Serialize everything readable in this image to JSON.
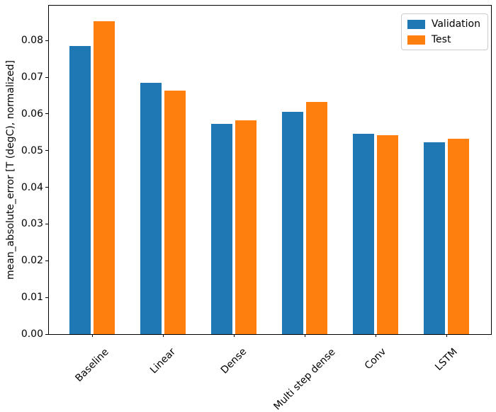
{
  "chart_data": {
    "type": "bar",
    "title": "",
    "xlabel": "",
    "ylabel": "mean_absolute_error [T (degC), normalized]",
    "categories": [
      "Baseline",
      "Linear",
      "Dense",
      "Multi step dense",
      "Conv",
      "LSTM"
    ],
    "series": [
      {
        "name": "Validation",
        "color": "#1f77b4",
        "values": [
          0.0785,
          0.0685,
          0.0572,
          0.0605,
          0.0545,
          0.0523
        ]
      },
      {
        "name": "Test",
        "color": "#ff7f0e",
        "values": [
          0.0852,
          0.0663,
          0.0583,
          0.0632,
          0.0543,
          0.0533
        ]
      }
    ],
    "ylim": [
      0,
      0.0895
    ],
    "yticks": [
      0,
      0.01,
      0.02,
      0.03,
      0.04,
      0.05,
      0.06,
      0.07,
      0.08
    ],
    "ytick_labels": [
      "0.00",
      "0.01",
      "0.02",
      "0.03",
      "0.04",
      "0.05",
      "0.06",
      "0.07",
      "0.08"
    ],
    "xtick_rotation_deg": 45,
    "grid": false,
    "legend": {
      "position": "upper right",
      "entries": [
        "Validation",
        "Test"
      ]
    },
    "colors": {
      "axis": "#000000",
      "legend_border": "#cccccc",
      "background": "#ffffff"
    }
  }
}
